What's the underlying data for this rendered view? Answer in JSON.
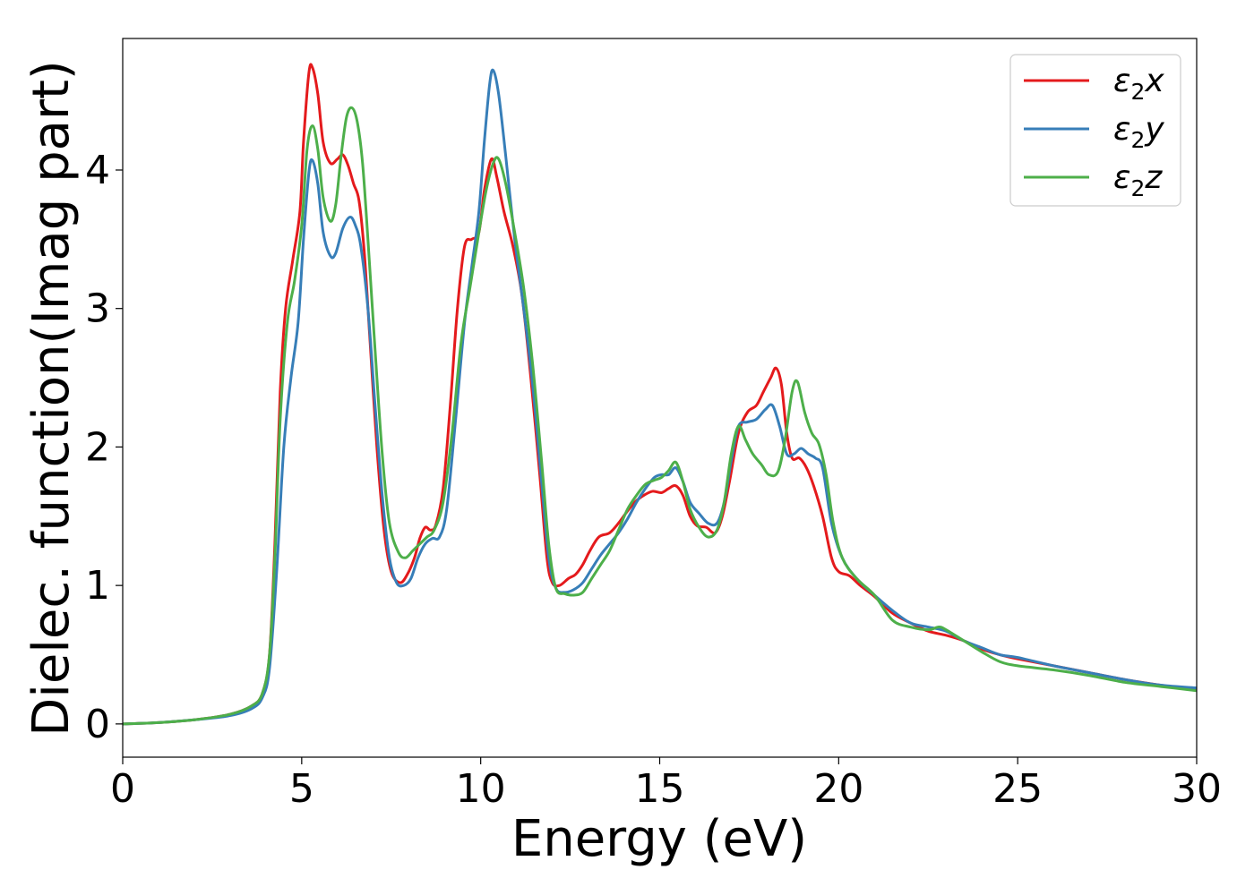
{
  "chart_data": {
    "type": "line",
    "xlabel": "Energy (eV)",
    "ylabel": "Dielec. function(Imag part)",
    "xlim": [
      0,
      30
    ],
    "ylim": [
      -0.24,
      4.95
    ],
    "x_ticks": [
      "0",
      "5",
      "10",
      "15",
      "20",
      "25",
      "30"
    ],
    "y_ticks": [
      "0",
      "1",
      "2",
      "3",
      "4"
    ],
    "legend_position": "top-right",
    "grid": false,
    "series": [
      {
        "name": "ε2x",
        "legend_base": "ε",
        "legend_sub": "2",
        "legend_suffix": "x",
        "color": "#e41a1c",
        "points": [
          [
            0,
            0
          ],
          [
            1,
            0.01
          ],
          [
            2,
            0.03
          ],
          [
            3,
            0.07
          ],
          [
            3.6,
            0.13
          ],
          [
            3.9,
            0.22
          ],
          [
            4.1,
            0.5
          ],
          [
            4.25,
            1.3
          ],
          [
            4.4,
            2.4
          ],
          [
            4.55,
            3.0
          ],
          [
            4.75,
            3.35
          ],
          [
            4.95,
            3.7
          ],
          [
            5.05,
            4.2
          ],
          [
            5.2,
            4.7
          ],
          [
            5.3,
            4.74
          ],
          [
            5.45,
            4.55
          ],
          [
            5.6,
            4.2
          ],
          [
            5.8,
            4.05
          ],
          [
            6.0,
            4.08
          ],
          [
            6.15,
            4.11
          ],
          [
            6.3,
            4.03
          ],
          [
            6.45,
            3.9
          ],
          [
            6.6,
            3.78
          ],
          [
            6.75,
            3.4
          ],
          [
            6.9,
            2.8
          ],
          [
            7.1,
            2.0
          ],
          [
            7.3,
            1.4
          ],
          [
            7.5,
            1.1
          ],
          [
            7.75,
            1.02
          ],
          [
            7.95,
            1.08
          ],
          [
            8.15,
            1.2
          ],
          [
            8.3,
            1.34
          ],
          [
            8.45,
            1.42
          ],
          [
            8.6,
            1.4
          ],
          [
            8.75,
            1.44
          ],
          [
            8.95,
            1.7
          ],
          [
            9.15,
            2.3
          ],
          [
            9.35,
            3.0
          ],
          [
            9.55,
            3.45
          ],
          [
            9.75,
            3.5
          ],
          [
            9.95,
            3.55
          ],
          [
            10.1,
            3.85
          ],
          [
            10.3,
            4.08
          ],
          [
            10.45,
            3.95
          ],
          [
            10.65,
            3.7
          ],
          [
            10.9,
            3.45
          ],
          [
            11.15,
            3.1
          ],
          [
            11.4,
            2.5
          ],
          [
            11.65,
            1.8
          ],
          [
            11.85,
            1.2
          ],
          [
            12.0,
            1.02
          ],
          [
            12.2,
            1.0
          ],
          [
            12.45,
            1.05
          ],
          [
            12.65,
            1.08
          ],
          [
            12.85,
            1.15
          ],
          [
            13.05,
            1.25
          ],
          [
            13.3,
            1.35
          ],
          [
            13.6,
            1.38
          ],
          [
            13.85,
            1.45
          ],
          [
            14.05,
            1.52
          ],
          [
            14.3,
            1.6
          ],
          [
            14.55,
            1.65
          ],
          [
            14.8,
            1.68
          ],
          [
            15.05,
            1.67
          ],
          [
            15.25,
            1.7
          ],
          [
            15.45,
            1.72
          ],
          [
            15.65,
            1.65
          ],
          [
            15.85,
            1.5
          ],
          [
            16.05,
            1.43
          ],
          [
            16.3,
            1.42
          ],
          [
            16.55,
            1.38
          ],
          [
            16.75,
            1.5
          ],
          [
            16.95,
            1.75
          ],
          [
            17.2,
            2.1
          ],
          [
            17.45,
            2.25
          ],
          [
            17.7,
            2.3
          ],
          [
            17.9,
            2.4
          ],
          [
            18.1,
            2.5
          ],
          [
            18.25,
            2.57
          ],
          [
            18.4,
            2.45
          ],
          [
            18.55,
            2.1
          ],
          [
            18.7,
            1.92
          ],
          [
            18.9,
            1.92
          ],
          [
            19.1,
            1.85
          ],
          [
            19.3,
            1.72
          ],
          [
            19.55,
            1.5
          ],
          [
            19.8,
            1.2
          ],
          [
            20.0,
            1.1
          ],
          [
            20.3,
            1.07
          ],
          [
            20.6,
            1.0
          ],
          [
            21.0,
            0.92
          ],
          [
            21.5,
            0.8
          ],
          [
            22.0,
            0.73
          ],
          [
            22.5,
            0.67
          ],
          [
            23.0,
            0.64
          ],
          [
            23.5,
            0.6
          ],
          [
            24.0,
            0.54
          ],
          [
            24.5,
            0.5
          ],
          [
            25.0,
            0.47
          ],
          [
            26.0,
            0.42
          ],
          [
            27.0,
            0.37
          ],
          [
            28.0,
            0.32
          ],
          [
            29.0,
            0.28
          ],
          [
            30.0,
            0.25
          ]
        ]
      },
      {
        "name": "ε2y",
        "legend_base": "ε",
        "legend_sub": "2",
        "legend_suffix": "y",
        "color": "#377eb8",
        "points": [
          [
            0,
            0
          ],
          [
            1,
            0.01
          ],
          [
            2,
            0.03
          ],
          [
            3,
            0.06
          ],
          [
            3.6,
            0.11
          ],
          [
            3.9,
            0.19
          ],
          [
            4.1,
            0.4
          ],
          [
            4.3,
            1.1
          ],
          [
            4.5,
            2.0
          ],
          [
            4.7,
            2.5
          ],
          [
            4.9,
            2.9
          ],
          [
            5.05,
            3.5
          ],
          [
            5.2,
            3.98
          ],
          [
            5.3,
            4.07
          ],
          [
            5.45,
            3.9
          ],
          [
            5.6,
            3.55
          ],
          [
            5.8,
            3.38
          ],
          [
            5.95,
            3.4
          ],
          [
            6.15,
            3.58
          ],
          [
            6.35,
            3.66
          ],
          [
            6.5,
            3.6
          ],
          [
            6.65,
            3.45
          ],
          [
            6.85,
            3.0
          ],
          [
            7.05,
            2.3
          ],
          [
            7.25,
            1.65
          ],
          [
            7.45,
            1.2
          ],
          [
            7.65,
            1.02
          ],
          [
            7.85,
            1.0
          ],
          [
            8.05,
            1.05
          ],
          [
            8.25,
            1.2
          ],
          [
            8.45,
            1.3
          ],
          [
            8.65,
            1.34
          ],
          [
            8.85,
            1.35
          ],
          [
            9.05,
            1.55
          ],
          [
            9.3,
            2.2
          ],
          [
            9.55,
            2.9
          ],
          [
            9.75,
            3.3
          ],
          [
            9.95,
            3.7
          ],
          [
            10.1,
            4.2
          ],
          [
            10.25,
            4.62
          ],
          [
            10.35,
            4.72
          ],
          [
            10.5,
            4.55
          ],
          [
            10.7,
            4.1
          ],
          [
            10.95,
            3.5
          ],
          [
            11.2,
            3.0
          ],
          [
            11.45,
            2.45
          ],
          [
            11.7,
            1.75
          ],
          [
            11.9,
            1.2
          ],
          [
            12.1,
            0.98
          ],
          [
            12.35,
            0.95
          ],
          [
            12.6,
            0.97
          ],
          [
            12.85,
            1.02
          ],
          [
            13.1,
            1.12
          ],
          [
            13.35,
            1.22
          ],
          [
            13.6,
            1.3
          ],
          [
            13.85,
            1.38
          ],
          [
            14.1,
            1.48
          ],
          [
            14.35,
            1.6
          ],
          [
            14.6,
            1.7
          ],
          [
            14.85,
            1.78
          ],
          [
            15.05,
            1.8
          ],
          [
            15.25,
            1.8
          ],
          [
            15.45,
            1.85
          ],
          [
            15.65,
            1.75
          ],
          [
            15.85,
            1.6
          ],
          [
            16.1,
            1.52
          ],
          [
            16.35,
            1.45
          ],
          [
            16.6,
            1.45
          ],
          [
            16.8,
            1.6
          ],
          [
            17.0,
            1.9
          ],
          [
            17.2,
            2.15
          ],
          [
            17.45,
            2.18
          ],
          [
            17.7,
            2.2
          ],
          [
            17.95,
            2.27
          ],
          [
            18.15,
            2.3
          ],
          [
            18.35,
            2.15
          ],
          [
            18.55,
            1.95
          ],
          [
            18.75,
            1.95
          ],
          [
            18.95,
            1.99
          ],
          [
            19.15,
            1.95
          ],
          [
            19.35,
            1.92
          ],
          [
            19.55,
            1.85
          ],
          [
            19.8,
            1.45
          ],
          [
            20.1,
            1.2
          ],
          [
            20.5,
            1.05
          ],
          [
            21.0,
            0.93
          ],
          [
            21.5,
            0.82
          ],
          [
            22.0,
            0.73
          ],
          [
            22.5,
            0.7
          ],
          [
            23.0,
            0.67
          ],
          [
            23.5,
            0.6
          ],
          [
            24.0,
            0.55
          ],
          [
            24.5,
            0.5
          ],
          [
            25.0,
            0.48
          ],
          [
            26.0,
            0.42
          ],
          [
            27.0,
            0.37
          ],
          [
            28.0,
            0.32
          ],
          [
            29.0,
            0.28
          ],
          [
            30.0,
            0.26
          ]
        ]
      },
      {
        "name": "ε2z",
        "legend_base": "ε",
        "legend_sub": "2",
        "legend_suffix": "z",
        "color": "#4daf4a",
        "points": [
          [
            0,
            0
          ],
          [
            1,
            0.01
          ],
          [
            2,
            0.03
          ],
          [
            3,
            0.07
          ],
          [
            3.6,
            0.13
          ],
          [
            3.9,
            0.22
          ],
          [
            4.1,
            0.5
          ],
          [
            4.25,
            1.2
          ],
          [
            4.4,
            2.2
          ],
          [
            4.6,
            2.9
          ],
          [
            4.8,
            3.2
          ],
          [
            5.0,
            3.6
          ],
          [
            5.15,
            4.15
          ],
          [
            5.3,
            4.32
          ],
          [
            5.45,
            4.15
          ],
          [
            5.6,
            3.8
          ],
          [
            5.8,
            3.63
          ],
          [
            5.95,
            3.75
          ],
          [
            6.1,
            4.1
          ],
          [
            6.25,
            4.38
          ],
          [
            6.4,
            4.45
          ],
          [
            6.55,
            4.35
          ],
          [
            6.7,
            4.05
          ],
          [
            6.85,
            3.5
          ],
          [
            7.05,
            2.7
          ],
          [
            7.25,
            1.95
          ],
          [
            7.45,
            1.45
          ],
          [
            7.7,
            1.24
          ],
          [
            7.9,
            1.2
          ],
          [
            8.1,
            1.25
          ],
          [
            8.3,
            1.3
          ],
          [
            8.5,
            1.35
          ],
          [
            8.7,
            1.4
          ],
          [
            8.95,
            1.6
          ],
          [
            9.2,
            2.1
          ],
          [
            9.45,
            2.75
          ],
          [
            9.7,
            3.15
          ],
          [
            9.95,
            3.55
          ],
          [
            10.15,
            3.85
          ],
          [
            10.35,
            4.05
          ],
          [
            10.5,
            4.08
          ],
          [
            10.7,
            3.9
          ],
          [
            10.95,
            3.55
          ],
          [
            11.2,
            3.15
          ],
          [
            11.45,
            2.6
          ],
          [
            11.7,
            1.9
          ],
          [
            11.9,
            1.3
          ],
          [
            12.1,
            0.98
          ],
          [
            12.35,
            0.94
          ],
          [
            12.6,
            0.93
          ],
          [
            12.85,
            0.95
          ],
          [
            13.1,
            1.05
          ],
          [
            13.35,
            1.15
          ],
          [
            13.6,
            1.25
          ],
          [
            13.85,
            1.4
          ],
          [
            14.1,
            1.55
          ],
          [
            14.35,
            1.65
          ],
          [
            14.6,
            1.73
          ],
          [
            14.85,
            1.76
          ],
          [
            15.05,
            1.78
          ],
          [
            15.25,
            1.83
          ],
          [
            15.45,
            1.89
          ],
          [
            15.65,
            1.75
          ],
          [
            15.85,
            1.55
          ],
          [
            16.1,
            1.42
          ],
          [
            16.35,
            1.35
          ],
          [
            16.6,
            1.4
          ],
          [
            16.8,
            1.6
          ],
          [
            17.0,
            1.95
          ],
          [
            17.2,
            2.15
          ],
          [
            17.4,
            2.05
          ],
          [
            17.6,
            1.95
          ],
          [
            17.85,
            1.87
          ],
          [
            18.05,
            1.8
          ],
          [
            18.3,
            1.82
          ],
          [
            18.5,
            2.05
          ],
          [
            18.7,
            2.4
          ],
          [
            18.85,
            2.47
          ],
          [
            19.05,
            2.25
          ],
          [
            19.25,
            2.1
          ],
          [
            19.45,
            2.02
          ],
          [
            19.65,
            1.8
          ],
          [
            19.85,
            1.45
          ],
          [
            20.1,
            1.2
          ],
          [
            20.5,
            1.05
          ],
          [
            21.0,
            0.93
          ],
          [
            21.5,
            0.75
          ],
          [
            22.0,
            0.7
          ],
          [
            22.5,
            0.68
          ],
          [
            22.8,
            0.7
          ],
          [
            23.0,
            0.68
          ],
          [
            23.5,
            0.6
          ],
          [
            24.0,
            0.52
          ],
          [
            24.5,
            0.45
          ],
          [
            25.0,
            0.42
          ],
          [
            26.0,
            0.39
          ],
          [
            27.0,
            0.35
          ],
          [
            28.0,
            0.3
          ],
          [
            29.0,
            0.27
          ],
          [
            30.0,
            0.24
          ]
        ]
      }
    ]
  }
}
